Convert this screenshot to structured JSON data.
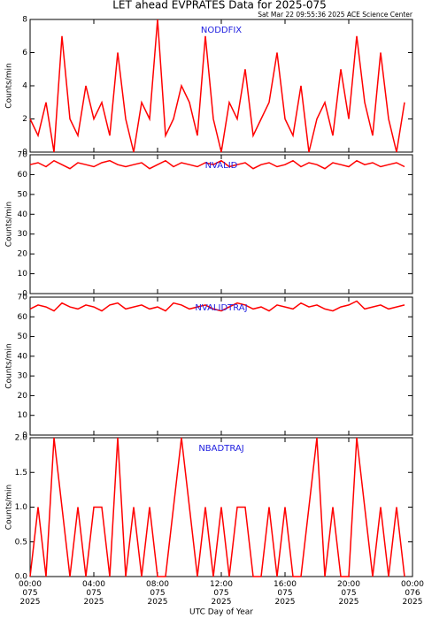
{
  "title": "LET ahead EVPRATES Data for 2025-075",
  "subtitle": "Sat Mar 22 09:55:36 2025 ACE Science Center",
  "chart_data": [
    {
      "type": "line",
      "label": "NODDFIX",
      "ylabel": "Counts/min",
      "color": "#ff0000",
      "xlim": [
        0,
        24
      ],
      "ylim": [
        0,
        8
      ],
      "yticks": [
        0,
        2,
        4,
        6,
        8
      ],
      "x": [
        0,
        0.5,
        1,
        1.5,
        2,
        2.5,
        3,
        3.5,
        4,
        4.5,
        5,
        5.5,
        6,
        6.5,
        7,
        7.5,
        8,
        8.5,
        9,
        9.5,
        10,
        10.5,
        11,
        11.5,
        12,
        12.5,
        13,
        13.5,
        14,
        14.5,
        15,
        15.5,
        16,
        16.5,
        17,
        17.5,
        18,
        18.5,
        19,
        19.5,
        20,
        20.5,
        21,
        21.5,
        22,
        22.5,
        23,
        23.5
      ],
      "values": [
        2,
        1,
        3,
        0,
        7,
        2,
        1,
        4,
        2,
        3,
        1,
        6,
        2,
        0,
        3,
        2,
        8,
        1,
        2,
        4,
        3,
        1,
        7,
        2,
        0,
        3,
        2,
        5,
        1,
        2,
        3,
        6,
        2,
        1,
        4,
        0,
        2,
        3,
        1,
        5,
        2,
        7,
        3,
        1,
        6,
        2,
        0,
        3
      ]
    },
    {
      "type": "line",
      "label": "NVALID",
      "ylabel": "Counts/min",
      "color": "#ff0000",
      "xlim": [
        0,
        24
      ],
      "ylim": [
        0,
        70
      ],
      "yticks": [
        0,
        10,
        20,
        30,
        40,
        50,
        60,
        70
      ],
      "x": [
        0,
        0.5,
        1,
        1.5,
        2,
        2.5,
        3,
        3.5,
        4,
        4.5,
        5,
        5.5,
        6,
        6.5,
        7,
        7.5,
        8,
        8.5,
        9,
        9.5,
        10,
        10.5,
        11,
        11.5,
        12,
        12.5,
        13,
        13.5,
        14,
        14.5,
        15,
        15.5,
        16,
        16.5,
        17,
        17.5,
        18,
        18.5,
        19,
        19.5,
        20,
        20.5,
        21,
        21.5,
        22,
        22.5,
        23,
        23.5
      ],
      "values": [
        65,
        66,
        64,
        67,
        65,
        63,
        66,
        65,
        64,
        66,
        67,
        65,
        64,
        65,
        66,
        63,
        65,
        67,
        64,
        66,
        65,
        64,
        66,
        65,
        67,
        64,
        65,
        66,
        63,
        65,
        66,
        64,
        65,
        67,
        64,
        66,
        65,
        63,
        66,
        65,
        64,
        67,
        65,
        66,
        64,
        65,
        66,
        64
      ]
    },
    {
      "type": "line",
      "label": "NVALIDTRAJ",
      "ylabel": "Counts/min",
      "color": "#ff0000",
      "xlim": [
        0,
        24
      ],
      "ylim": [
        0,
        70
      ],
      "yticks": [
        0,
        10,
        20,
        30,
        40,
        50,
        60,
        70
      ],
      "x": [
        0,
        0.5,
        1,
        1.5,
        2,
        2.5,
        3,
        3.5,
        4,
        4.5,
        5,
        5.5,
        6,
        6.5,
        7,
        7.5,
        8,
        8.5,
        9,
        9.5,
        10,
        10.5,
        11,
        11.5,
        12,
        12.5,
        13,
        13.5,
        14,
        14.5,
        15,
        15.5,
        16,
        16.5,
        17,
        17.5,
        18,
        18.5,
        19,
        19.5,
        20,
        20.5,
        21,
        21.5,
        22,
        22.5,
        23,
        23.5
      ],
      "values": [
        64,
        66,
        65,
        63,
        67,
        65,
        64,
        66,
        65,
        63,
        66,
        67,
        64,
        65,
        66,
        64,
        65,
        63,
        67,
        66,
        64,
        65,
        66,
        64,
        63,
        65,
        67,
        66,
        64,
        65,
        63,
        66,
        65,
        64,
        67,
        65,
        66,
        64,
        63,
        65,
        66,
        68,
        64,
        65,
        66,
        64,
        65,
        66
      ]
    },
    {
      "type": "line",
      "label": "NBADTRAJ",
      "ylabel": "Counts/min",
      "xlabel": "UTC Day of Year",
      "color": "#ff0000",
      "xlim": [
        0,
        24
      ],
      "ylim": [
        0,
        2
      ],
      "yticks": [
        {
          "value": 0,
          "label": "0.0"
        },
        0.5,
        {
          "value": 1,
          "label": "1.0"
        },
        1.5,
        {
          "value": 2,
          "label": "2.0"
        }
      ],
      "xticks": [
        {
          "value": 0,
          "label": "00:00\n075\n2025"
        },
        {
          "value": 4,
          "label": "04:00\n075\n2025"
        },
        {
          "value": 8,
          "label": "08:00\n075\n2025"
        },
        {
          "value": 12,
          "label": "12:00\n075\n2025"
        },
        {
          "value": 16,
          "label": "16:00\n075\n2025"
        },
        {
          "value": 20,
          "label": "20:00\n075\n2025"
        },
        {
          "value": 24,
          "label": "00:00\n076\n2025"
        }
      ],
      "x": [
        0,
        0.5,
        1,
        1.5,
        2,
        2.5,
        3,
        3.5,
        4,
        4.5,
        5,
        5.5,
        6,
        6.5,
        7,
        7.5,
        8,
        8.5,
        9,
        9.5,
        10,
        10.5,
        11,
        11.5,
        12,
        12.5,
        13,
        13.5,
        14,
        14.5,
        15,
        15.5,
        16,
        16.5,
        17,
        17.5,
        18,
        18.5,
        19,
        19.5,
        20,
        20.5,
        21,
        21.5,
        22,
        22.5,
        23,
        23.5
      ],
      "values": [
        0,
        1,
        0,
        2,
        1,
        0,
        1,
        0,
        1,
        1,
        0,
        2,
        0,
        1,
        0,
        1,
        0,
        0,
        1,
        2,
        1,
        0,
        1,
        0,
        1,
        0,
        1,
        1,
        0,
        0,
        1,
        0,
        1,
        0,
        0,
        1,
        2,
        0,
        1,
        0,
        0,
        2,
        1,
        0,
        1,
        0,
        1,
        0
      ]
    }
  ]
}
